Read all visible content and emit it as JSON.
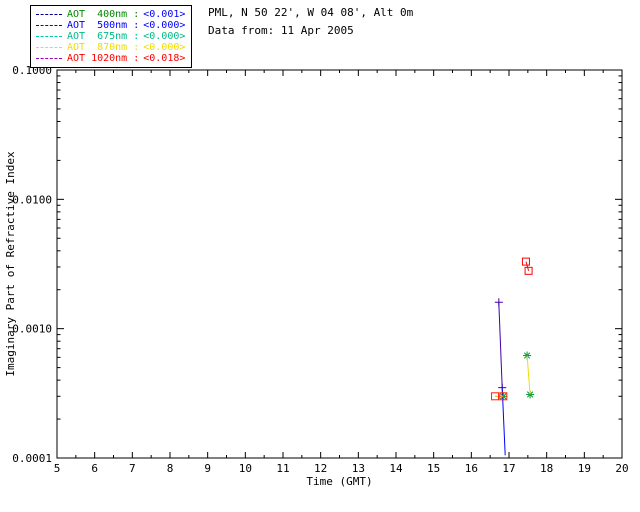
{
  "header": {
    "site_line": "PML, N 50 22', W 04 08', Alt 0m",
    "date_line": "Data from: 11 Apr 2005"
  },
  "legend": {
    "rows": [
      {
        "label": "AOT  400nm :",
        "value": "<0.001>",
        "dash_color": "#000088",
        "label_color": "#008800",
        "value_color": "#0000ff"
      },
      {
        "label": "AOT  500nm :",
        "value": "<0.000>",
        "dash_color": "#0000ff",
        "label_color": "#0000ff",
        "value_color": "#0000ff"
      },
      {
        "label": "AOT  675nm :",
        "value": "<0.000>",
        "dash_color": "#00ccaa",
        "label_color": "#00bb88",
        "value_color": "#00bb88"
      },
      {
        "label": "AOT  870nm :",
        "value": "<0.000>",
        "dash_color": "#eedd00",
        "label_color": "#eedd00",
        "value_color": "#eedd00"
      },
      {
        "label": "AOT 1020nm :",
        "value": "<0.018>",
        "dash_color": "#9900bb",
        "label_color": "#ff0000",
        "value_color": "#ff0000"
      }
    ]
  },
  "chart_data": {
    "type": "scatter",
    "title": "",
    "xlabel": "Time (GMT)",
    "ylabel": "Imaginary Part of Refractive Index",
    "xlim": [
      5,
      20
    ],
    "ylim": [
      0.0001,
      0.1
    ],
    "yscale": "log",
    "grid": false,
    "x_tick_labels": [
      "5",
      "6",
      "7",
      "8",
      "9",
      "10",
      "11",
      "12",
      "13",
      "14",
      "15",
      "16",
      "17",
      "18",
      "19",
      "20"
    ],
    "y_tick_labels": [
      "0.0001",
      "0.0010",
      "0.0100",
      "0.1000"
    ],
    "series": [
      {
        "name": "AOT 400nm",
        "color": "#4400aa",
        "marker": "plus",
        "line": true,
        "points": [
          [
            16.73,
            0.0016
          ],
          [
            16.82,
            0.00035
          ]
        ]
      },
      {
        "name": "AOT 500nm",
        "color": "#0000ff",
        "marker": "none",
        "line": true,
        "points": [
          [
            16.82,
            0.00035
          ],
          [
            16.9,
            0.000105
          ]
        ]
      },
      {
        "name": "AOT 675nm",
        "color": "#009933",
        "marker": "asterisk",
        "line": false,
        "points": [
          [
            16.85,
            0.0003
          ],
          [
            17.48,
            0.00062
          ],
          [
            17.56,
            0.00031
          ]
        ]
      },
      {
        "name": "AOT 870nm",
        "color": "#eedd00",
        "marker": "none",
        "line": true,
        "points": [
          [
            17.48,
            0.00062
          ],
          [
            17.56,
            0.00031
          ]
        ]
      },
      {
        "name": "AOT 1020nm",
        "color": "#ff0000",
        "marker": "square",
        "line": true,
        "points": [
          [
            17.45,
            0.0033
          ],
          [
            17.52,
            0.0028
          ]
        ]
      },
      {
        "name": "AOT 1020nm",
        "color": "#ff2200",
        "line_color": "#ff9900",
        "marker": "square",
        "line": true,
        "points": [
          [
            16.63,
            0.0003
          ],
          [
            16.85,
            0.0003
          ]
        ]
      }
    ]
  }
}
